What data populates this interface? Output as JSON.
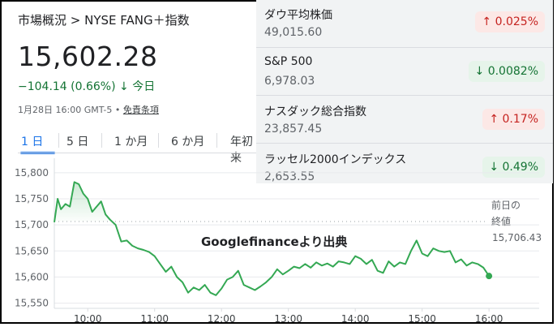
{
  "header": {
    "breadcrumb": "市場概況 > NYSE FANG＋指数",
    "price": "15,602.28",
    "change": "−104.14 (0.66%)",
    "change_arrow": "↓",
    "change_period": "今日",
    "timestamp": "1月28日 16:00 GMT-5 • ",
    "disclaimer": "免責条項"
  },
  "tabs": [
    "1 日",
    "5 日",
    "1 か月",
    "6 か月",
    "年初来"
  ],
  "active_tab": "1 日",
  "indices": [
    {
      "name": "ダウ平均株価",
      "value": "49,015.60",
      "change": "0.025%",
      "direction": "up"
    },
    {
      "name": "S&P 500",
      "value": "6,978.03",
      "change": "0.0082%",
      "direction": "down"
    },
    {
      "name": "ナスダック総合指数",
      "value": "23,857.45",
      "change": "0.17%",
      "direction": "up"
    },
    {
      "name": "ラッセル2000インデックス",
      "value": "2,653.55",
      "change": "0.49%",
      "direction": "down"
    }
  ],
  "annotation": "Googlefinanceより出典",
  "previous_close": {
    "label_1": "前日の",
    "label_2": "終値",
    "value": "15,706.43",
    "level": 15706.43
  },
  "colors": {
    "line": "#34a853",
    "fill": "#e6f4ea",
    "up_badge": "#fce8e6",
    "down_badge": "#e6f4ea"
  },
  "chart_data": {
    "type": "line",
    "x_ticks": [
      "10:00",
      "11:00",
      "12:00",
      "13:00",
      "14:00",
      "15:00",
      "16:00"
    ],
    "y_ticks": [
      15800,
      15750,
      15700,
      15650,
      15600,
      15550
    ],
    "y_tick_labels": [
      "15,800",
      "15,750",
      "15,700",
      "15,650",
      "15,600",
      "15,550"
    ],
    "ylim": [
      15540,
      15820
    ],
    "xlim": [
      "09:30",
      "16:45"
    ],
    "series": [
      {
        "x": [
          "09:30",
          "09:33",
          "09:36",
          "09:40",
          "09:44",
          "09:48",
          "09:52",
          "09:56",
          "10:00",
          "10:04",
          "10:08",
          "10:12",
          "10:16",
          "10:20",
          "10:25",
          "10:30",
          "10:35",
          "10:40",
          "10:45",
          "10:50",
          "10:55",
          "11:00",
          "11:05",
          "11:10",
          "11:15",
          "11:20",
          "11:25",
          "11:30",
          "11:35",
          "11:40",
          "11:45",
          "11:50",
          "11:55",
          "12:00",
          "12:05",
          "12:10",
          "12:15",
          "12:20",
          "12:25",
          "12:30",
          "12:35",
          "12:40",
          "12:45",
          "12:50",
          "12:55",
          "13:00",
          "13:05",
          "13:10",
          "13:15",
          "13:20",
          "13:25",
          "13:30",
          "13:35",
          "13:40",
          "13:45",
          "13:50",
          "13:55",
          "14:00",
          "14:05",
          "14:10",
          "14:15",
          "14:20",
          "14:25",
          "14:30",
          "14:35",
          "14:40",
          "14:45",
          "14:50",
          "14:55",
          "15:00",
          "15:05",
          "15:10",
          "15:15",
          "15:20",
          "15:25",
          "15:30",
          "15:35",
          "15:40",
          "15:45",
          "15:50",
          "15:55",
          "16:00"
        ],
        "y": [
          15705,
          15750,
          15730,
          15740,
          15735,
          15782,
          15778,
          15760,
          15750,
          15725,
          15735,
          15745,
          15720,
          15710,
          15700,
          15668,
          15670,
          15660,
          15655,
          15652,
          15648,
          15640,
          15625,
          15610,
          15620,
          15600,
          15590,
          15570,
          15580,
          15575,
          15585,
          15570,
          15565,
          15578,
          15595,
          15600,
          15612,
          15585,
          15580,
          15575,
          15582,
          15590,
          15600,
          15615,
          15605,
          15612,
          15620,
          15617,
          15625,
          15618,
          15628,
          15622,
          15626,
          15620,
          15630,
          15628,
          15625,
          15640,
          15635,
          15625,
          15633,
          15612,
          15608,
          15630,
          15620,
          15628,
          15625,
          15650,
          15670,
          15645,
          15640,
          15655,
          15650,
          15648,
          15650,
          15628,
          15634,
          15622,
          15628,
          15625,
          15618,
          15602
        ]
      }
    ],
    "xlabel": "",
    "ylabel": "",
    "grid": "horizontal"
  }
}
